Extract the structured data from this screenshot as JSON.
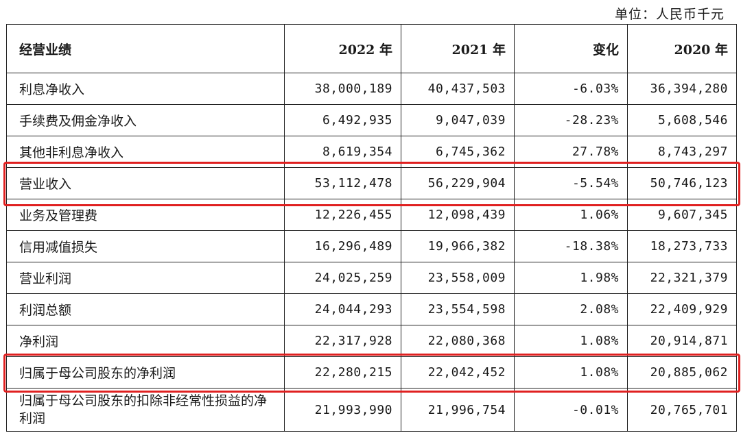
{
  "unit_label": "单位：人民币千元",
  "headers": [
    "经营业绩",
    "2022 年",
    "2021 年",
    "变化",
    "2020 年"
  ],
  "rows": [
    {
      "label": "利息净收入",
      "y2022": "38,000,189",
      "y2021": "40,437,503",
      "change": "-6.03%",
      "y2020": "36,394,280"
    },
    {
      "label": "手续费及佣金净收入",
      "y2022": "6,492,935",
      "y2021": "9,047,039",
      "change": "-28.23%",
      "y2020": "5,608,546"
    },
    {
      "label": "其他非利息净收入",
      "y2022": "8,619,354",
      "y2021": "6,745,362",
      "change": "27.78%",
      "y2020": "8,743,297"
    },
    {
      "label": "营业收入",
      "y2022": "53,112,478",
      "y2021": "56,229,904",
      "change": "-5.54%",
      "y2020": "50,746,123"
    },
    {
      "label": "业务及管理费",
      "y2022": "12,226,455",
      "y2021": "12,098,439",
      "change": "1.06%",
      "y2020": "9,607,345"
    },
    {
      "label": "信用减值损失",
      "y2022": "16,296,489",
      "y2021": "19,966,382",
      "change": "-18.38%",
      "y2020": "18,273,733"
    },
    {
      "label": "营业利润",
      "y2022": "24,025,259",
      "y2021": "23,558,009",
      "change": "1.98%",
      "y2020": "22,321,379"
    },
    {
      "label": "利润总额",
      "y2022": "24,044,293",
      "y2021": "23,554,598",
      "change": "2.08%",
      "y2020": "22,409,929"
    },
    {
      "label": "净利润",
      "y2022": "22,317,928",
      "y2021": "22,080,368",
      "change": "1.08%",
      "y2020": "20,914,871"
    },
    {
      "label": "归属于母公司股东的净利润",
      "y2022": "22,280,215",
      "y2021": "22,042,452",
      "change": "1.08%",
      "y2020": "20,885,062"
    },
    {
      "label": "归属于母公司股东的扣除非经常性损益的净利润",
      "y2022": "21,993,990",
      "y2021": "21,996,754",
      "change": "-0.01%",
      "y2020": "20,765,701"
    }
  ],
  "highlight_color": "#e02020"
}
